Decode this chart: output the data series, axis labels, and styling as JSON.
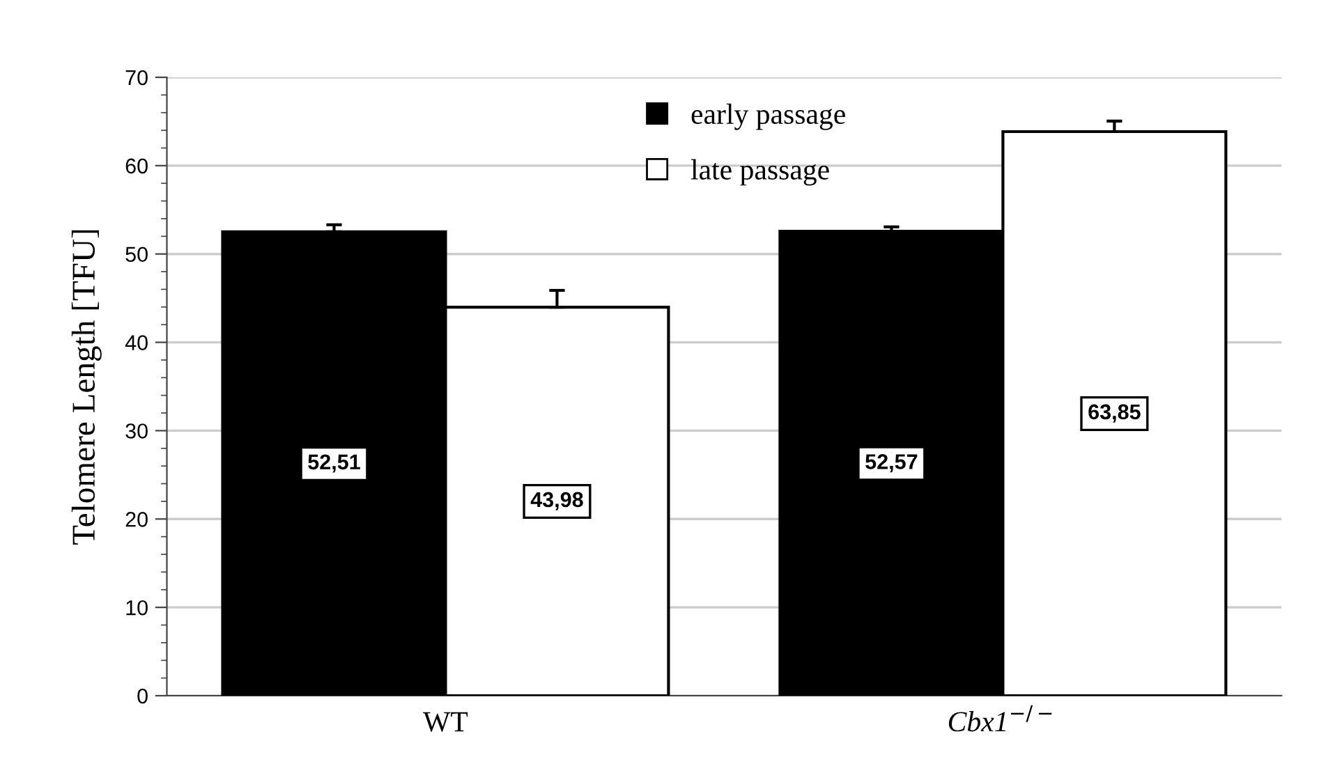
{
  "chart_data": {
    "type": "bar",
    "ylabel": "Telomere Length [TFU]",
    "categories": [
      "WT",
      "Cbx1$^{−/−}$"
    ],
    "series": [
      {
        "name": "early passage",
        "color": "#000000",
        "values": [
          52.51,
          52.57
        ],
        "value_labels": [
          "52,51",
          "52,57"
        ],
        "errors": [
          0.8,
          0.5
        ]
      },
      {
        "name": "late passage",
        "color": "#ffffff",
        "values": [
          43.98,
          63.85
        ],
        "value_labels": [
          "43,98",
          "63,85"
        ],
        "errors": [
          1.9,
          1.2
        ]
      }
    ],
    "ylim": [
      0,
      70
    ],
    "yticks": [
      0,
      10,
      20,
      30,
      40,
      50,
      60,
      70
    ],
    "grid": "y",
    "legend": "top"
  }
}
